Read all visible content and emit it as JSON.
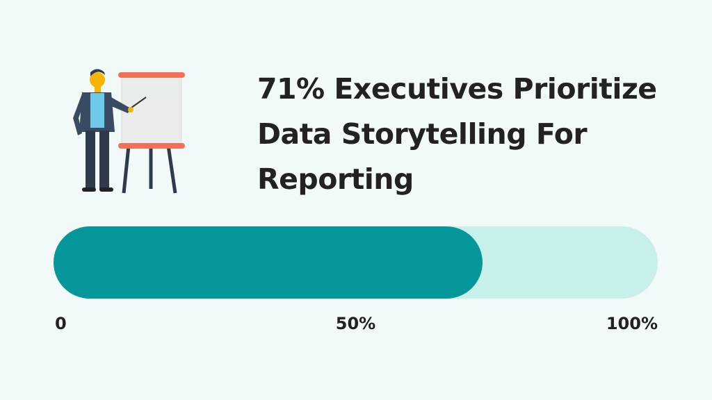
{
  "chart_data": {
    "type": "progress",
    "title": "71% Executives Prioritize Data Storytelling For Reporting",
    "value": 71,
    "color": "#05979a",
    "track_color": "#c8f0ea",
    "xlim": [
      0,
      100
    ],
    "xticks": [
      0,
      {
        "value": 50,
        "label": "50%"
      },
      {
        "value": 100,
        "label": "100%"
      }
    ]
  }
}
